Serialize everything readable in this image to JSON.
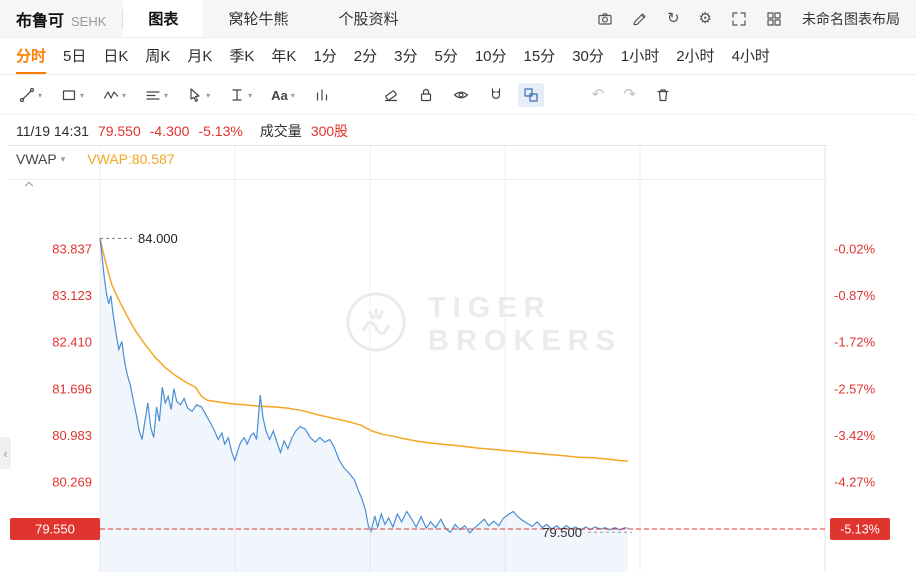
{
  "colors": {
    "red": "#e0342f",
    "orange_active": "#ff7d00",
    "price_line": "#4a8fd3",
    "vwap_line": "#f5a623",
    "grid": "#efefef"
  },
  "header": {
    "stock_name": "布鲁可",
    "exchange": "SEHK",
    "layout_name": "未命名图表布局",
    "tabs": [
      {
        "name": "tab-chart",
        "label": "图表",
        "active": true
      },
      {
        "name": "tab-warrants",
        "label": "窝轮牛熊",
        "active": false
      },
      {
        "name": "tab-stock-info",
        "label": "个股资料",
        "active": false
      }
    ],
    "icons": [
      {
        "name": "screenshot-icon",
        "icon": "camera"
      },
      {
        "name": "edit-chart-icon",
        "icon": "pencil"
      },
      {
        "name": "refresh-icon",
        "icon": "refresh"
      },
      {
        "name": "settings-icon",
        "icon": "gear"
      },
      {
        "name": "fullscreen-icon",
        "icon": "fullscreen"
      },
      {
        "name": "grid-layout-icon",
        "icon": "grid"
      }
    ]
  },
  "timeframes": [
    {
      "name": "tf-intraday",
      "label": "分时",
      "active": true
    },
    {
      "name": "tf-5d",
      "label": "5日",
      "active": false
    },
    {
      "name": "tf-1d",
      "label": "日K",
      "active": false
    },
    {
      "name": "tf-1w",
      "label": "周K",
      "active": false
    },
    {
      "name": "tf-1mo",
      "label": "月K",
      "active": false
    },
    {
      "name": "tf-1q",
      "label": "季K",
      "active": false
    },
    {
      "name": "tf-1y",
      "label": "年K",
      "active": false
    },
    {
      "name": "tf-1min",
      "label": "1分",
      "active": false
    },
    {
      "name": "tf-2min",
      "label": "2分",
      "active": false
    },
    {
      "name": "tf-3min",
      "label": "3分",
      "active": false
    },
    {
      "name": "tf-5min",
      "label": "5分",
      "active": false
    },
    {
      "name": "tf-10min",
      "label": "10分",
      "active": false
    },
    {
      "name": "tf-15min",
      "label": "15分",
      "active": false
    },
    {
      "name": "tf-30min",
      "label": "30分",
      "active": false
    },
    {
      "name": "tf-1h",
      "label": "1小时",
      "active": false
    },
    {
      "name": "tf-2h",
      "label": "2小时",
      "active": false
    },
    {
      "name": "tf-4h",
      "label": "4小时",
      "active": false
    }
  ],
  "toolbar": {
    "tools": [
      {
        "name": "trend-line-tool",
        "icon": "trend",
        "caret": true
      },
      {
        "name": "shape-tool",
        "icon": "rect",
        "caret": true
      },
      {
        "name": "wave-tool",
        "icon": "wave",
        "caret": true
      },
      {
        "name": "lines-tool",
        "icon": "lines",
        "caret": true
      },
      {
        "name": "cursor-tool",
        "icon": "cursor",
        "caret": true
      },
      {
        "name": "measure-tool",
        "icon": "ibeam",
        "caret": true
      },
      {
        "name": "text-tool",
        "icon": "text",
        "caret": true
      },
      {
        "name": "bars-tool",
        "icon": "bars",
        "caret": false
      },
      {
        "name": "eraser-tool",
        "icon": "eraser",
        "caret": false
      },
      {
        "name": "lock-tool",
        "icon": "lock",
        "caret": false
      },
      {
        "name": "visibility-tool",
        "icon": "eye",
        "caret": false
      },
      {
        "name": "magnet-tool",
        "icon": "magnet",
        "caret": false
      },
      {
        "name": "compare-layout-tool",
        "icon": "compare",
        "caret": false,
        "selected": true
      },
      {
        "name": "undo-button",
        "icon": "undo",
        "caret": false,
        "disabled": true
      },
      {
        "name": "redo-button",
        "icon": "redo",
        "caret": false,
        "disabled": true
      },
      {
        "name": "trash-button",
        "icon": "trash",
        "caret": false
      }
    ]
  },
  "quote": {
    "datetime": "11/19 14:31",
    "price": "79.550",
    "change": "-4.300",
    "change_pct": "-5.13%",
    "volume_label": "成交量",
    "volume": "300股"
  },
  "indicator": {
    "name": "VWAP",
    "value": "VWAP:80.587"
  },
  "watermark": {
    "line1": "TIGER",
    "line2": "BROKERS"
  },
  "chart_data": {
    "type": "line",
    "title": "布鲁可 SEHK 分时图",
    "y_axis_left_labels": [
      "83.837",
      "83.123",
      "82.410",
      "81.696",
      "80.983",
      "80.269",
      "79.550"
    ],
    "y_axis_right_labels": [
      "-0.02%",
      "-0.87%",
      "-1.72%",
      "-2.57%",
      "-3.42%",
      "-4.27%",
      "-5.13%"
    ],
    "ylim": [
      79.3,
      84.15
    ],
    "grid": true,
    "current_price": {
      "price": 79.55,
      "left_badge": "79.550",
      "right_badge": "-5.13%"
    },
    "annotations": [
      {
        "name": "high-price-annotation",
        "text": "84.000",
        "price": 84.0
      },
      {
        "name": "last-price-annotation",
        "text": "79.500",
        "price": 79.5
      }
    ],
    "series": [
      {
        "name": "price",
        "color": "#4a8fd3",
        "points": [
          [
            0.0,
            84.0
          ],
          [
            0.003,
            83.7
          ],
          [
            0.006,
            83.4
          ],
          [
            0.009,
            83.15
          ],
          [
            0.012,
            83.0
          ],
          [
            0.015,
            83.12
          ],
          [
            0.018,
            82.85
          ],
          [
            0.022,
            82.55
          ],
          [
            0.026,
            82.3
          ],
          [
            0.03,
            82.42
          ],
          [
            0.034,
            82.1
          ],
          [
            0.038,
            81.9
          ],
          [
            0.042,
            81.75
          ],
          [
            0.046,
            81.52
          ],
          [
            0.05,
            81.3
          ],
          [
            0.054,
            81.05
          ],
          [
            0.058,
            80.92
          ],
          [
            0.062,
            81.2
          ],
          [
            0.066,
            81.48
          ],
          [
            0.07,
            81.1
          ],
          [
            0.074,
            80.95
          ],
          [
            0.078,
            81.42
          ],
          [
            0.082,
            81.2
          ],
          [
            0.086,
            81.72
          ],
          [
            0.09,
            81.48
          ],
          [
            0.094,
            81.58
          ],
          [
            0.098,
            81.38
          ],
          [
            0.102,
            81.7
          ],
          [
            0.106,
            81.5
          ],
          [
            0.111,
            81.45
          ],
          [
            0.116,
            81.55
          ],
          [
            0.121,
            81.4
          ],
          [
            0.127,
            81.35
          ],
          [
            0.133,
            81.45
          ],
          [
            0.14,
            81.42
          ],
          [
            0.146,
            81.3
          ],
          [
            0.152,
            81.18
          ],
          [
            0.158,
            81.05
          ],
          [
            0.163,
            80.92
          ],
          [
            0.168,
            81.02
          ],
          [
            0.172,
            80.85
          ],
          [
            0.177,
            80.95
          ],
          [
            0.182,
            80.72
          ],
          [
            0.186,
            80.6
          ],
          [
            0.19,
            80.75
          ],
          [
            0.194,
            80.88
          ],
          [
            0.199,
            80.95
          ],
          [
            0.203,
            80.85
          ],
          [
            0.208,
            80.98
          ],
          [
            0.212,
            81.02
          ],
          [
            0.216,
            80.92
          ],
          [
            0.221,
            81.6
          ],
          [
            0.225,
            81.25
          ],
          [
            0.229,
            81.05
          ],
          [
            0.234,
            80.92
          ],
          [
            0.239,
            81.05
          ],
          [
            0.244,
            80.88
          ],
          [
            0.249,
            80.72
          ],
          [
            0.254,
            80.9
          ],
          [
            0.259,
            80.78
          ],
          [
            0.265,
            80.95
          ],
          [
            0.27,
            81.05
          ],
          [
            0.276,
            81.12
          ],
          [
            0.283,
            81.08
          ],
          [
            0.29,
            80.95
          ],
          [
            0.297,
            80.88
          ],
          [
            0.303,
            80.95
          ],
          [
            0.31,
            80.88
          ],
          [
            0.317,
            80.92
          ],
          [
            0.323,
            80.8
          ],
          [
            0.33,
            80.6
          ],
          [
            0.337,
            80.48
          ],
          [
            0.344,
            80.4
          ],
          [
            0.351,
            80.3
          ],
          [
            0.356,
            80.15
          ],
          [
            0.361,
            80.02
          ],
          [
            0.366,
            79.85
          ],
          [
            0.37,
            79.6
          ],
          [
            0.374,
            79.52
          ],
          [
            0.379,
            79.75
          ],
          [
            0.383,
            79.58
          ],
          [
            0.388,
            79.78
          ],
          [
            0.393,
            79.62
          ],
          [
            0.398,
            79.72
          ],
          [
            0.404,
            79.58
          ],
          [
            0.41,
            79.78
          ],
          [
            0.416,
            79.66
          ],
          [
            0.423,
            79.82
          ],
          [
            0.43,
            79.7
          ],
          [
            0.436,
            79.58
          ],
          [
            0.443,
            79.74
          ],
          [
            0.45,
            79.56
          ],
          [
            0.456,
            79.66
          ],
          [
            0.463,
            79.57
          ],
          [
            0.47,
            79.7
          ],
          [
            0.476,
            79.57
          ],
          [
            0.483,
            79.5
          ],
          [
            0.49,
            79.62
          ],
          [
            0.496,
            79.54
          ],
          [
            0.503,
            79.6
          ],
          [
            0.51,
            79.49
          ],
          [
            0.516,
            79.56
          ],
          [
            0.523,
            79.63
          ],
          [
            0.53,
            79.7
          ],
          [
            0.536,
            79.6
          ],
          [
            0.543,
            79.67
          ],
          [
            0.55,
            79.6
          ],
          [
            0.556,
            79.71
          ],
          [
            0.563,
            79.77
          ],
          [
            0.57,
            79.82
          ],
          [
            0.576,
            79.74
          ],
          [
            0.583,
            79.68
          ],
          [
            0.59,
            79.63
          ],
          [
            0.596,
            79.59
          ],
          [
            0.603,
            79.66
          ],
          [
            0.61,
            79.57
          ],
          [
            0.616,
            79.62
          ],
          [
            0.623,
            79.55
          ],
          [
            0.63,
            79.6
          ],
          [
            0.636,
            79.54
          ],
          [
            0.643,
            79.6
          ],
          [
            0.65,
            79.55
          ],
          [
            0.656,
            79.58
          ],
          [
            0.663,
            79.53
          ],
          [
            0.67,
            79.58
          ],
          [
            0.676,
            79.54
          ],
          [
            0.683,
            79.58
          ],
          [
            0.69,
            79.55
          ],
          [
            0.697,
            79.57
          ],
          [
            0.703,
            79.54
          ],
          [
            0.71,
            79.57
          ],
          [
            0.717,
            79.54
          ],
          [
            0.724,
            79.57
          ],
          [
            0.728,
            79.56
          ]
        ]
      },
      {
        "name": "VWAP",
        "color": "#f5a623",
        "points": [
          [
            0.0,
            84.0
          ],
          [
            0.008,
            83.62
          ],
          [
            0.016,
            83.3
          ],
          [
            0.025,
            83.08
          ],
          [
            0.034,
            82.88
          ],
          [
            0.048,
            82.6
          ],
          [
            0.062,
            82.38
          ],
          [
            0.076,
            82.18
          ],
          [
            0.09,
            82.02
          ],
          [
            0.104,
            81.9
          ],
          [
            0.118,
            81.8
          ],
          [
            0.132,
            81.72
          ],
          [
            0.14,
            81.58
          ],
          [
            0.148,
            81.52
          ],
          [
            0.16,
            81.5
          ],
          [
            0.18,
            81.47
          ],
          [
            0.2,
            81.45
          ],
          [
            0.22,
            81.43
          ],
          [
            0.24,
            81.42
          ],
          [
            0.26,
            81.4
          ],
          [
            0.28,
            81.36
          ],
          [
            0.3,
            81.3
          ],
          [
            0.32,
            81.25
          ],
          [
            0.34,
            81.2
          ],
          [
            0.36,
            81.14
          ],
          [
            0.375,
            81.05
          ],
          [
            0.39,
            81.0
          ],
          [
            0.405,
            80.97
          ],
          [
            0.42,
            80.93
          ],
          [
            0.44,
            80.89
          ],
          [
            0.46,
            80.86
          ],
          [
            0.48,
            80.84
          ],
          [
            0.5,
            80.82
          ],
          [
            0.52,
            80.79
          ],
          [
            0.54,
            80.77
          ],
          [
            0.56,
            80.75
          ],
          [
            0.58,
            80.73
          ],
          [
            0.6,
            80.71
          ],
          [
            0.62,
            80.69
          ],
          [
            0.64,
            80.67
          ],
          [
            0.66,
            80.65
          ],
          [
            0.68,
            80.64
          ],
          [
            0.7,
            80.62
          ],
          [
            0.715,
            80.6
          ],
          [
            0.728,
            80.59
          ]
        ]
      }
    ]
  }
}
